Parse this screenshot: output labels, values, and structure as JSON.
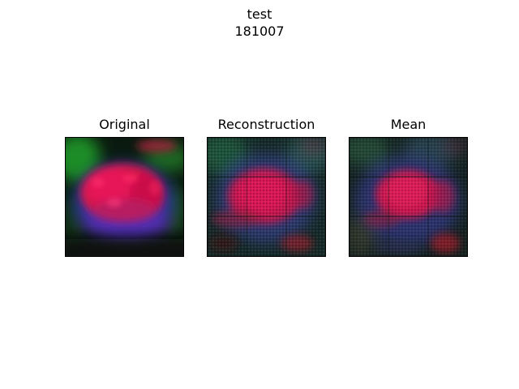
{
  "figure": {
    "title_line1": "test",
    "title_line2": "181007"
  },
  "panels": [
    {
      "title": "Original"
    },
    {
      "title": "Reconstruction"
    },
    {
      "title": "Mean"
    }
  ]
}
